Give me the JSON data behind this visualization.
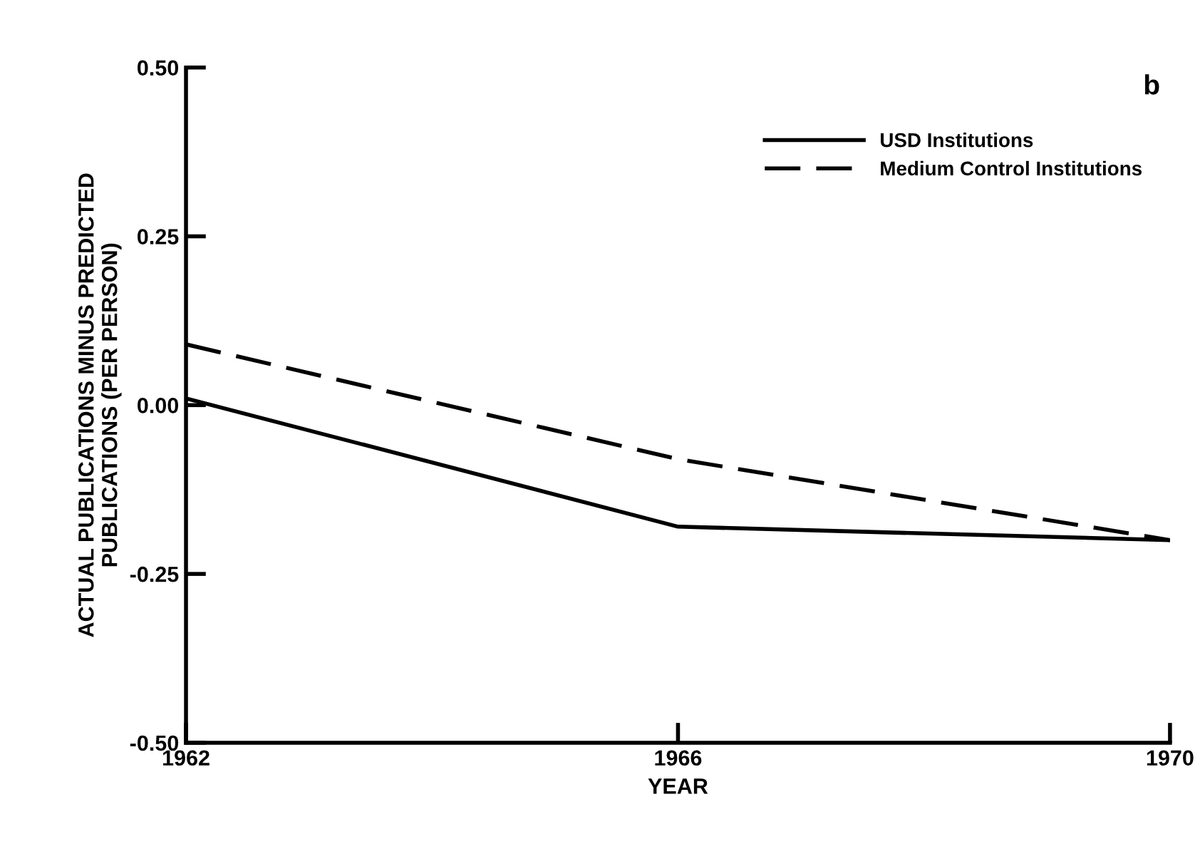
{
  "chart_data": {
    "type": "line",
    "xlabel": "YEAR",
    "ylabel": "ACTUAL PUBLICATIONS MINUS PREDICTED\nPUBLICATIONS (PER PERSON)",
    "x": [
      1962,
      1966,
      1970
    ],
    "series": [
      {
        "name": "USD Institutions",
        "color": "#000000",
        "line_style": "solid",
        "values": [
          0.01,
          -0.18,
          -0.2
        ]
      },
      {
        "name": "Medium Control Institutions",
        "color": "#000000",
        "line_style": "dashed",
        "values": [
          0.09,
          -0.08,
          -0.2
        ]
      }
    ],
    "xlim": [
      1962,
      1970
    ],
    "xticks": [
      1962,
      1966,
      1970
    ],
    "ylim": [
      -0.5,
      0.5
    ],
    "yticks": [
      {
        "value": -0.5,
        "label": "-0.50"
      },
      {
        "value": -0.25,
        "label": "-0.25"
      },
      {
        "value": 0,
        "label": "0.00"
      },
      {
        "value": 0.25,
        "label": "0.25"
      },
      {
        "value": 0.5,
        "label": "0.50"
      }
    ],
    "annotations": [
      "b"
    ],
    "legend": "top right",
    "grid": false
  }
}
